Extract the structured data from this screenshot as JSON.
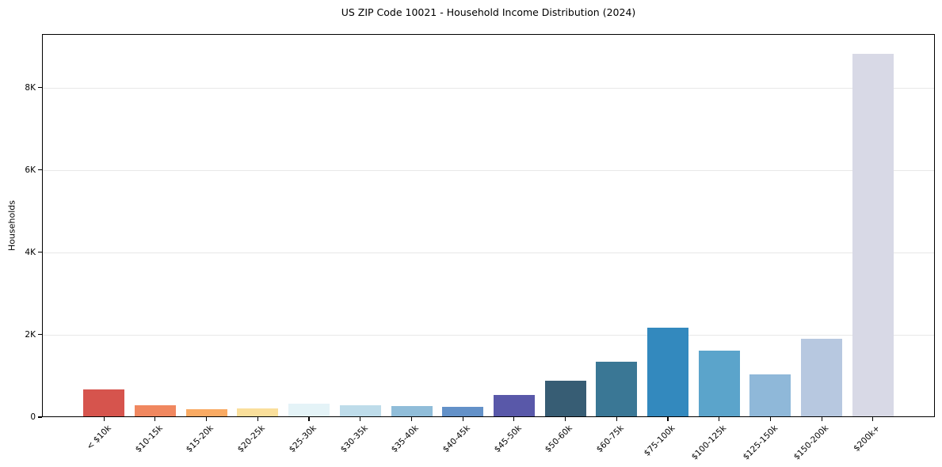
{
  "chart_data": {
    "type": "bar",
    "title": "US ZIP Code 10021 - Household Income Distribution (2024)",
    "xlabel": "",
    "ylabel": "Households",
    "categories": [
      "< $10k",
      "$10-15k",
      "$15-20k",
      "$20-25k",
      "$25-30k",
      "$30-35k",
      "$35-40k",
      "$40-45k",
      "$45-50k",
      "$50-60k",
      "$60-75k",
      "$75-100k",
      "$100-125k",
      "$125-150k",
      "$150-200k",
      "$200k+"
    ],
    "values": [
      670,
      280,
      200,
      220,
      330,
      290,
      265,
      245,
      530,
      880,
      1340,
      2170,
      1610,
      1040,
      1900,
      8830
    ],
    "bar_colors": [
      "#d6544d",
      "#f0875f",
      "#f9aa63",
      "#fadf9b",
      "#e4f3f7",
      "#bedcea",
      "#90bdd9",
      "#6391c8",
      "#5958a9",
      "#375d74",
      "#3a7795",
      "#3389be",
      "#5ba4cb",
      "#8fb8d9",
      "#b7c8e0",
      "#d8d9e6"
    ],
    "y_axis": {
      "tick_labels": [
        "0",
        "2K",
        "4K",
        "6K",
        "8K"
      ],
      "tick_values": [
        0,
        2000,
        4000,
        6000,
        8000
      ]
    },
    "ylim": [
      0,
      9300
    ],
    "grid": "horizontal",
    "legend": "none",
    "colors": {
      "background": "#ffffff",
      "gridline": "#e8e8e8",
      "spine": "#000000",
      "text": "#000000"
    }
  }
}
